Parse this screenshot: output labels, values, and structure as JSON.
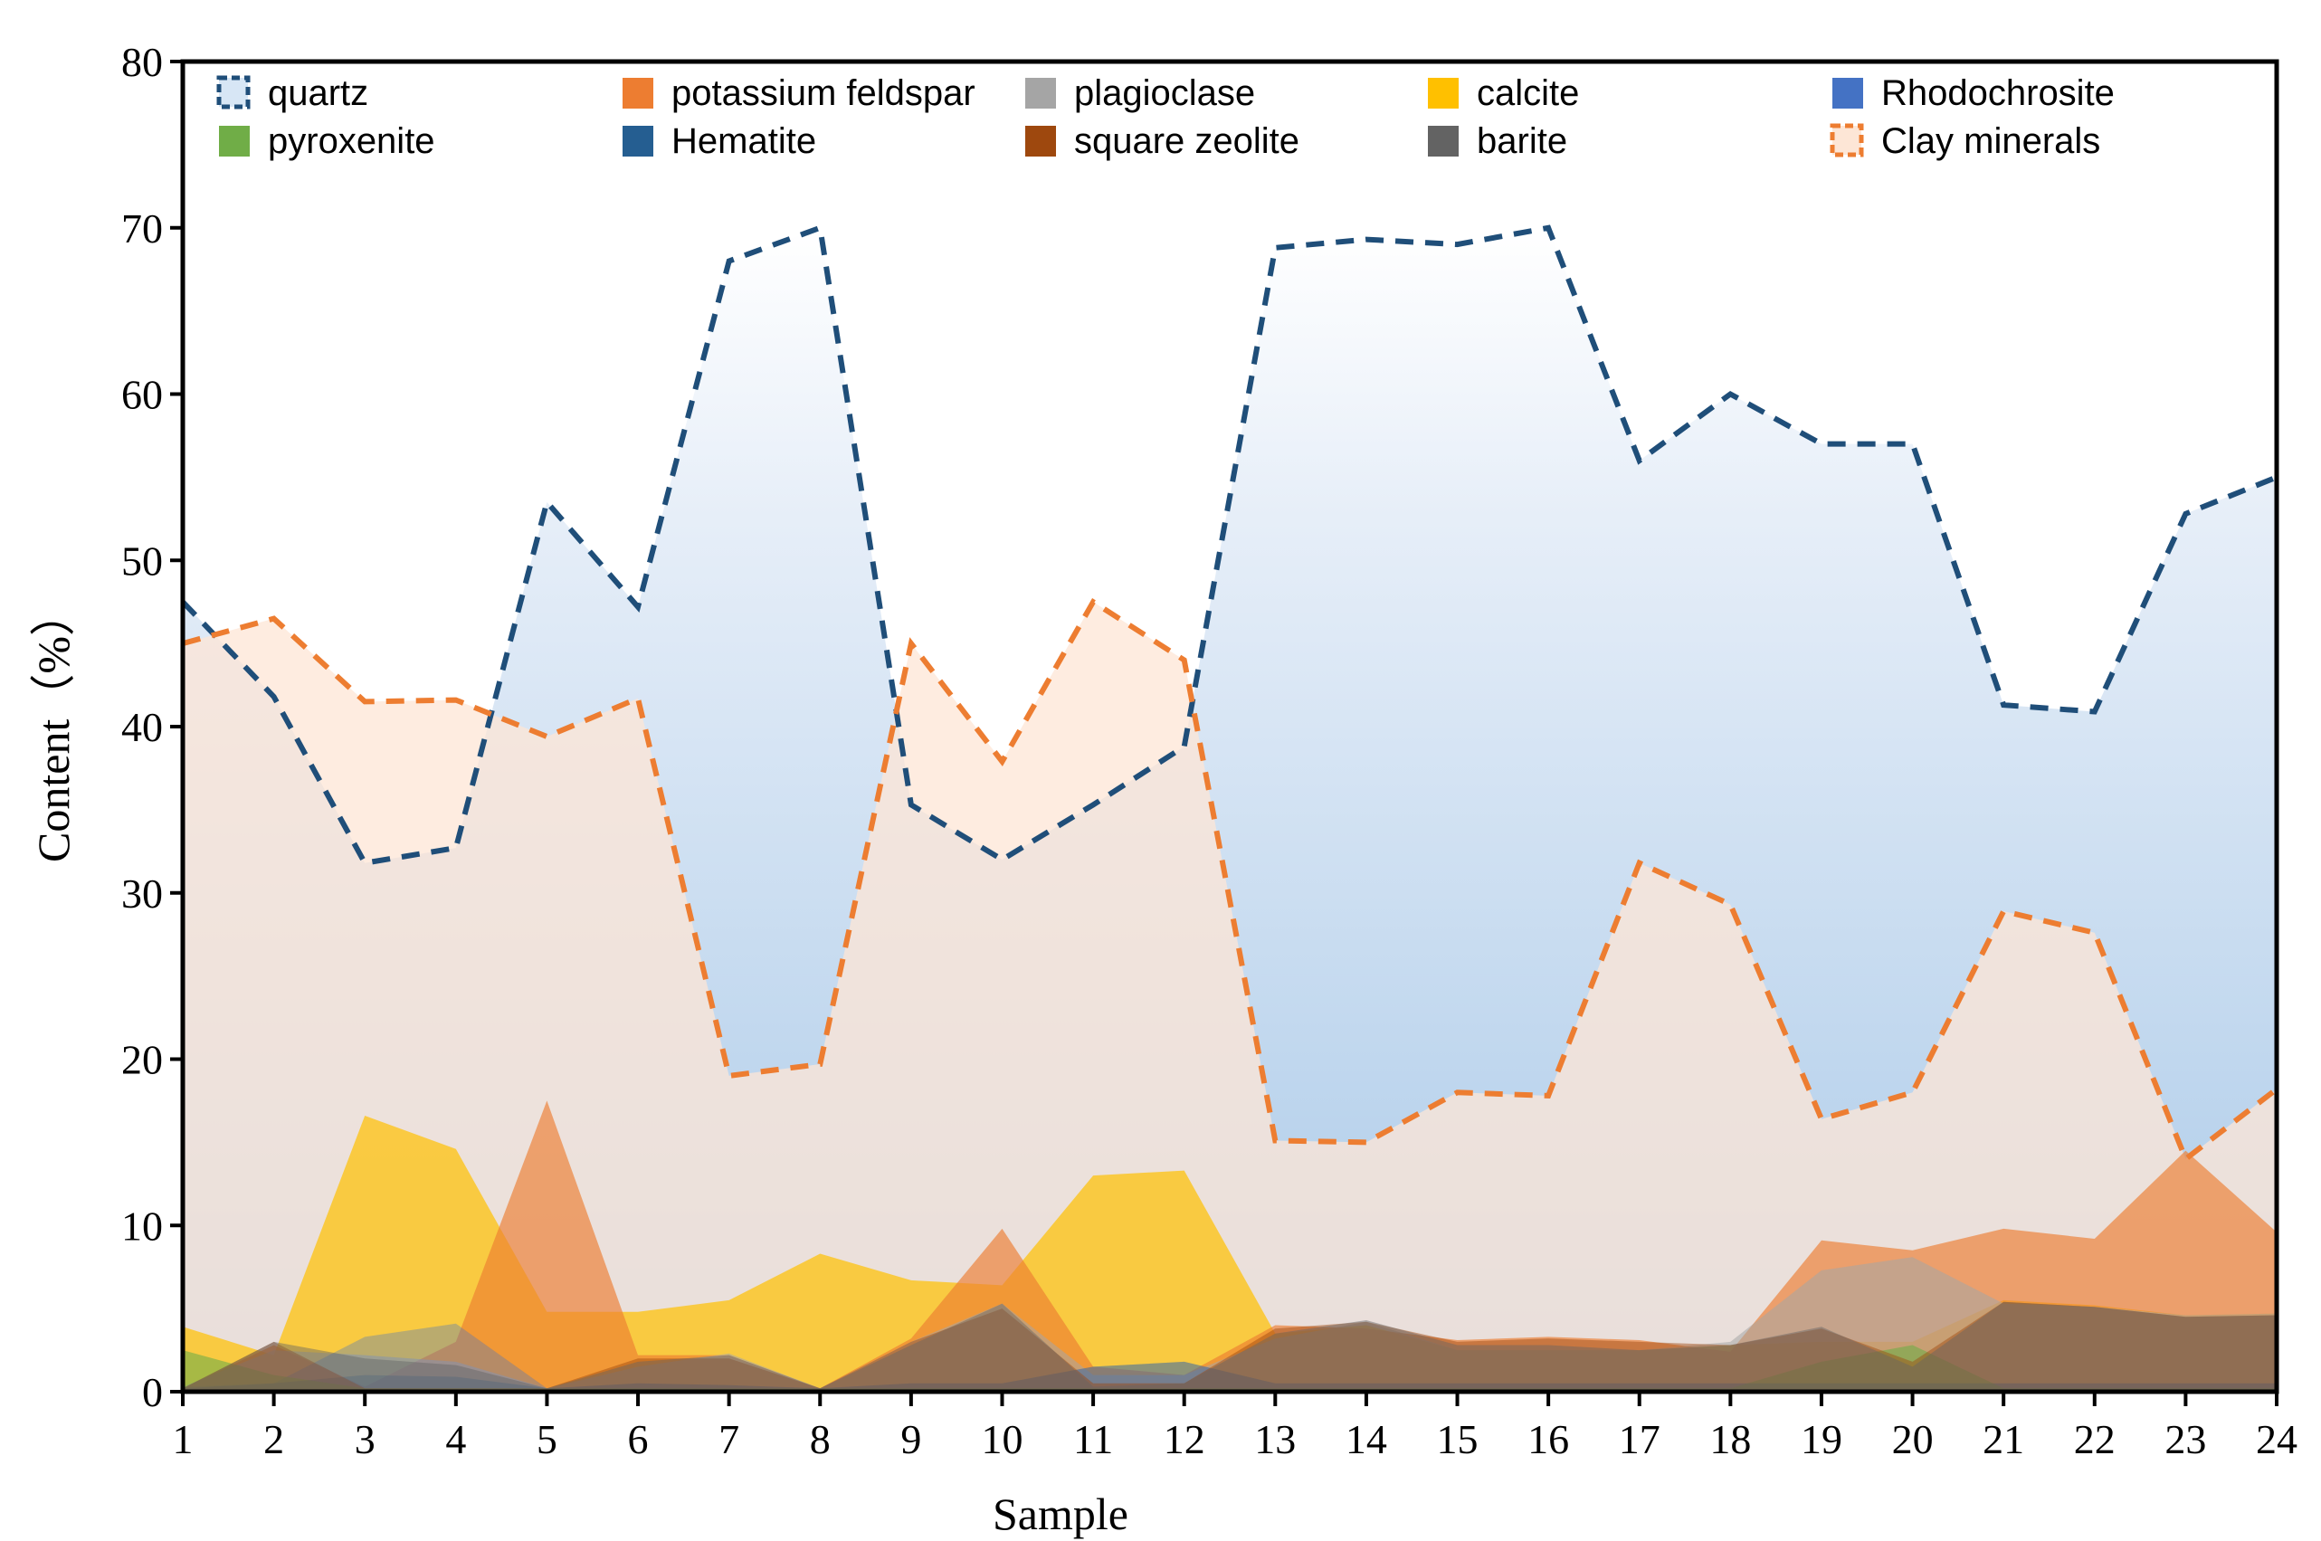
{
  "chart_data": {
    "type": "area",
    "title": "",
    "xlabel": "Sample",
    "ylabel": "Content（%）",
    "x": [
      1,
      2,
      3,
      4,
      5,
      6,
      7,
      8,
      9,
      10,
      11,
      12,
      13,
      14,
      15,
      16,
      17,
      18,
      19,
      20,
      21,
      22,
      23,
      24
    ],
    "xticks": [
      "1",
      "2",
      "3",
      "4",
      "5",
      "6",
      "7",
      "8",
      "9",
      "10",
      "11",
      "12",
      "13",
      "14",
      "15",
      "16",
      "17",
      "18",
      "19",
      "20",
      "21",
      "22",
      "23",
      "24"
    ],
    "ylim": [
      0,
      80
    ],
    "yticks": [
      "0",
      "10",
      "20",
      "30",
      "40",
      "50",
      "60",
      "70",
      "80"
    ],
    "grid": false,
    "legend_position": "top",
    "series": [
      {
        "name": "quartz",
        "color": "#1F4E79",
        "style": "dashed-gradient",
        "values": [
          47.5,
          41.8,
          31.8,
          32.7,
          53.5,
          47.2,
          68.0,
          70.0,
          35.3,
          32.0,
          35.3,
          38.8,
          68.8,
          69.3,
          69.0,
          70.0,
          56.0,
          60.0,
          57.0,
          57.0,
          41.3,
          40.9,
          52.8,
          55.0
        ]
      },
      {
        "name": "potassium feldspar",
        "color": "#ED7D31",
        "style": "fill",
        "values": [
          0.2,
          2.8,
          0.3,
          3.0,
          17.5,
          2.2,
          2.2,
          0.2,
          3.2,
          9.8,
          1.5,
          1.0,
          4.0,
          3.8,
          3.1,
          3.3,
          3.1,
          2.4,
          9.1,
          8.5,
          9.8,
          9.2,
          14.5,
          9.6
        ]
      },
      {
        "name": "plagioclase",
        "color": "#A5A5A5",
        "style": "fill",
        "values": [
          0.3,
          2.5,
          2.2,
          1.8,
          0.2,
          1.5,
          2.3,
          0.2,
          3.0,
          5.3,
          1.0,
          1.0,
          3.2,
          4.2,
          2.5,
          2.5,
          2.5,
          3.0,
          7.3,
          8.1,
          5.3,
          5.1,
          4.6,
          4.7
        ]
      },
      {
        "name": "calcite",
        "color": "#FFC000",
        "style": "fill",
        "values": [
          3.9,
          2.2,
          16.6,
          14.6,
          4.8,
          4.8,
          5.5,
          8.3,
          6.7,
          6.4,
          13.0,
          13.3,
          3.5,
          4.0,
          2.5,
          2.5,
          2.5,
          2.8,
          3.0,
          3.0,
          5.5,
          5.2,
          4.6,
          4.7
        ]
      },
      {
        "name": "Rhodochrosite",
        "color": "#4472C4",
        "style": "fill",
        "values": [
          0.3,
          0.5,
          3.3,
          4.1,
          0.2,
          0.5,
          0.4,
          0.2,
          0.5,
          0.5,
          1.5,
          1.8,
          0.5,
          0.5,
          0.5,
          0.5,
          0.5,
          0.5,
          0.5,
          0.5,
          0.5,
          0.5,
          0.5,
          0.5
        ]
      },
      {
        "name": "pyroxenite",
        "color": "#70AD47",
        "style": "fill",
        "values": [
          2.5,
          1.0,
          0.2,
          0.2,
          0.2,
          0.2,
          0.2,
          0.2,
          0.2,
          0.2,
          0.2,
          0.2,
          0.2,
          0.2,
          0.2,
          0.2,
          0.2,
          0.2,
          1.8,
          2.8,
          0.2,
          0.2,
          0.2,
          0.2
        ]
      },
      {
        "name": "Hematite",
        "color": "#255E91",
        "style": "fill",
        "values": [
          0.2,
          0.5,
          1.0,
          0.9,
          0.2,
          0.5,
          0.4,
          0.2,
          0.5,
          0.5,
          1.5,
          1.8,
          0.5,
          0.5,
          0.5,
          0.5,
          0.5,
          0.5,
          0.5,
          0.5,
          0.5,
          0.5,
          0.5,
          0.5
        ]
      },
      {
        "name": "square zeolite",
        "color": "#9E480E",
        "style": "fill",
        "values": [
          0.2,
          3.0,
          0.2,
          0.2,
          0.2,
          2.0,
          2.0,
          0.2,
          3.0,
          5.0,
          0.5,
          0.5,
          3.8,
          4.2,
          3.0,
          3.2,
          3.0,
          2.8,
          3.8,
          1.8,
          5.4,
          5.1,
          4.5,
          4.6
        ]
      },
      {
        "name": "barite",
        "color": "#636363",
        "style": "fill",
        "values": [
          0.2,
          3.0,
          2.0,
          1.6,
          0.2,
          1.8,
          2.2,
          0.2,
          2.8,
          5.3,
          0.3,
          0.5,
          3.5,
          4.3,
          2.8,
          2.8,
          2.5,
          2.8,
          3.9,
          1.5,
          5.4,
          5.1,
          4.5,
          4.6
        ]
      },
      {
        "name": "Clay minerals",
        "color": "#ED7D31",
        "style": "dashed-fill",
        "values": [
          45.0,
          46.5,
          41.5,
          41.6,
          39.4,
          41.7,
          19.0,
          19.7,
          45.0,
          37.9,
          47.5,
          44.0,
          15.1,
          15.0,
          18.0,
          17.8,
          31.8,
          29.3,
          16.4,
          18.0,
          28.9,
          27.6,
          14.0,
          18.2
        ]
      }
    ]
  }
}
